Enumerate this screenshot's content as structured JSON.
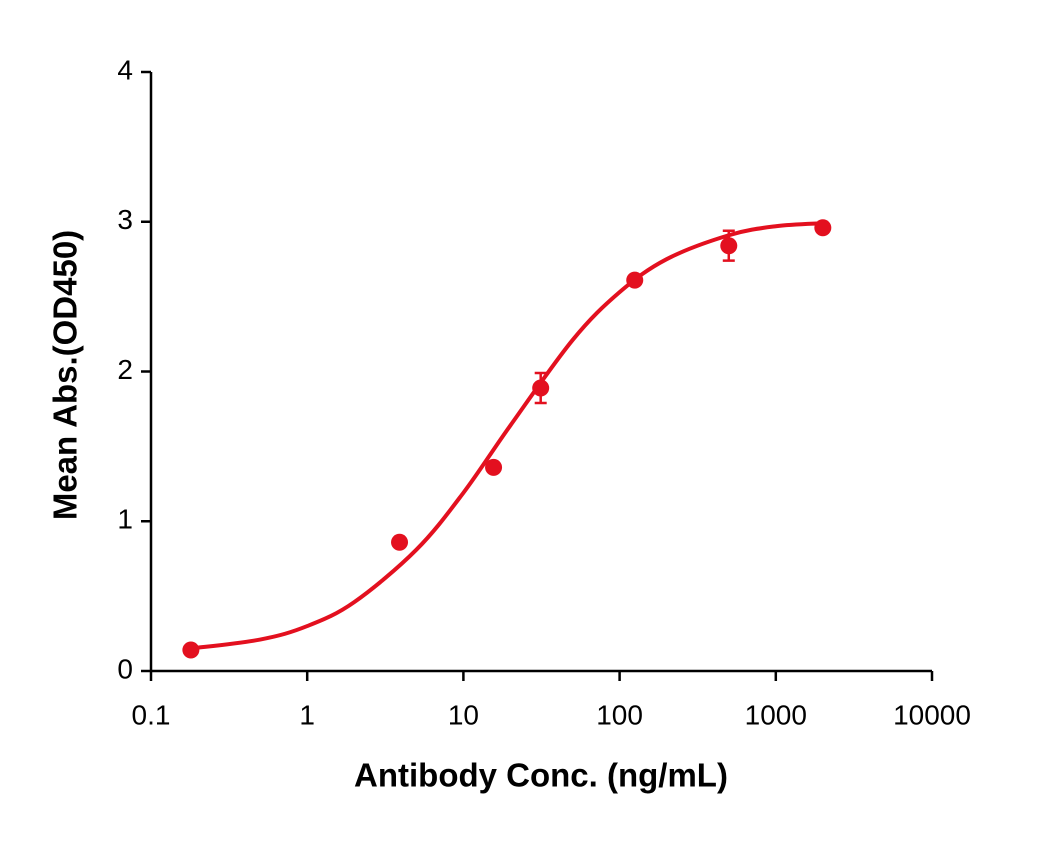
{
  "chart_data": {
    "type": "scatter",
    "x_label": "Antibody Conc. (ng/mL)",
    "y_label": "Mean Abs.(OD450)",
    "xscale": "log",
    "xlim": [
      0.1,
      10000
    ],
    "xticks": [
      0.1,
      1,
      10,
      100,
      1000,
      10000
    ],
    "ylim": [
      0,
      4
    ],
    "yticks": [
      0,
      1,
      2,
      3,
      4
    ],
    "series": [
      {
        "color": "#e3101f",
        "x": [
          0.18,
          3.9,
          15.6,
          31.25,
          125,
          500,
          2000
        ],
        "values": [
          0.14,
          0.86,
          1.36,
          1.89,
          2.61,
          2.84,
          2.96
        ],
        "errors": [
          null,
          null,
          null,
          0.1,
          null,
          0.1,
          null
        ]
      }
    ],
    "fit": {
      "color": "#e3101f",
      "x": [
        0.18,
        0.5,
        1,
        2,
        5,
        10,
        20,
        50,
        100,
        200,
        500,
        1000,
        2000
      ],
      "values": [
        0.15,
        0.21,
        0.3,
        0.46,
        0.81,
        1.19,
        1.64,
        2.21,
        2.53,
        2.75,
        2.91,
        2.97,
        2.99
      ]
    }
  }
}
